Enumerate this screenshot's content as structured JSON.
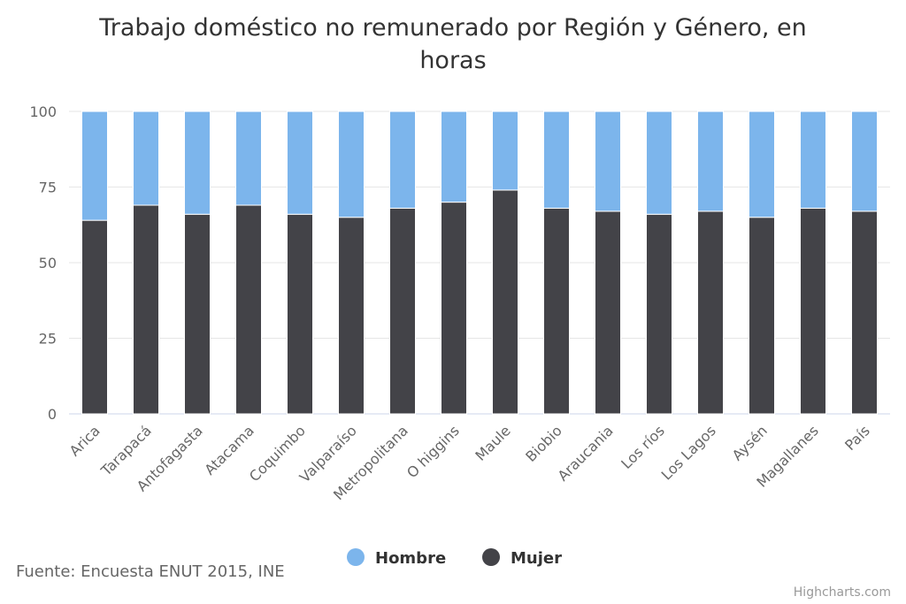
{
  "chart_data": {
    "type": "bar",
    "stacking": "percent",
    "title_lines": [
      "Trabajo doméstico no remunerado por Región y Género, en",
      "horas"
    ],
    "categories": [
      "Arica",
      "Tarapacá",
      "Antofagasta",
      "Atacama",
      "Coquimbo",
      "Valparaíso",
      "Metropolitana",
      "O higgins",
      "Maule",
      "Biobio",
      "Araucania",
      "Los ríos",
      "Los Lagos",
      "Aysén",
      "Magallanes",
      "País"
    ],
    "series": [
      {
        "name": "Hombre",
        "color": "#7cb5ec",
        "values": [
          36,
          31,
          34,
          31,
          34,
          35,
          32,
          30,
          26,
          32,
          33,
          34,
          33,
          35,
          32,
          33
        ]
      },
      {
        "name": "Mujer",
        "color": "#434348",
        "values": [
          64,
          69,
          66,
          69,
          66,
          65,
          68,
          70,
          74,
          68,
          67,
          66,
          67,
          65,
          68,
          67
        ]
      }
    ],
    "ylim": [
      0,
      100
    ],
    "yticks": [
      "0",
      "25",
      "50",
      "75",
      "100"
    ],
    "grid": true,
    "legend_position": "bottom-center"
  },
  "source": "Fuente: Encuesta ENUT 2015, INE",
  "credits": "Highcharts.com"
}
